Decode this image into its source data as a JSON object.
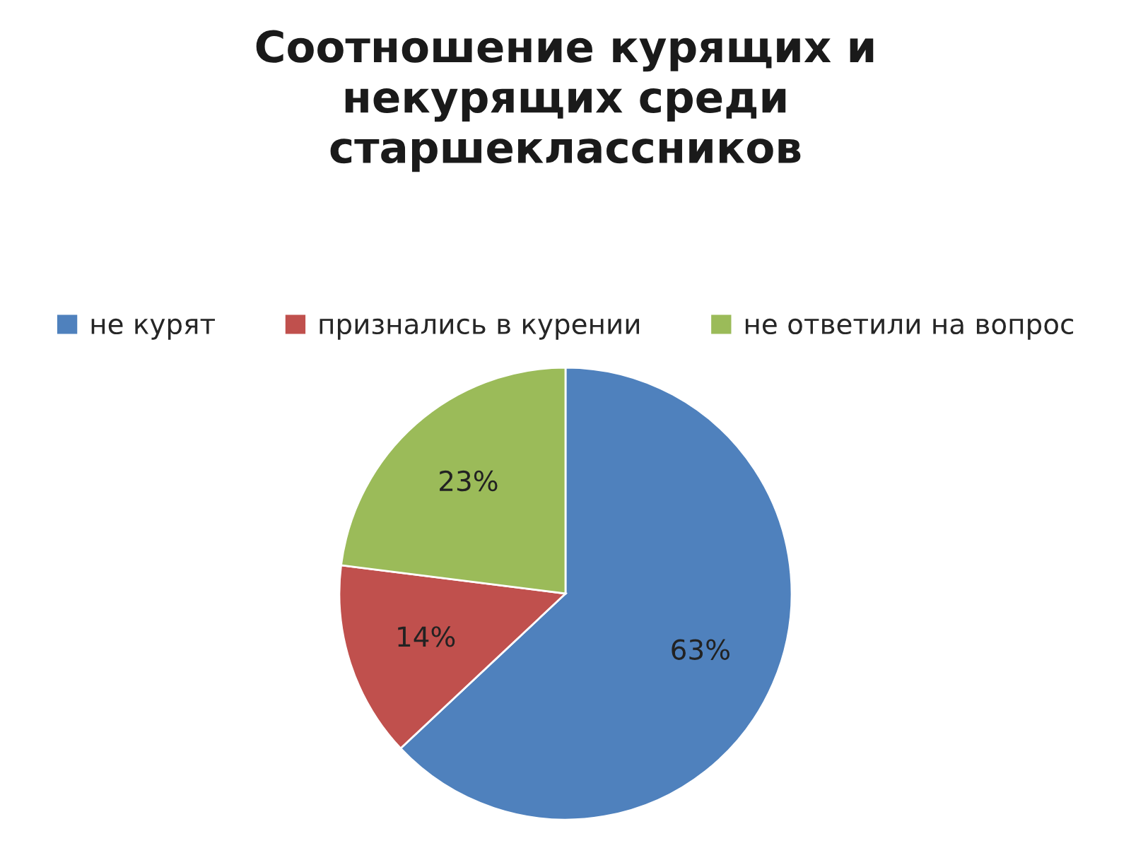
{
  "chart_data": {
    "type": "pie",
    "title": "Соотношение курящих и\nнекурящих среди\nстаршеклассников",
    "categories": [
      "не курят",
      "признались в курении",
      "не ответили на вопрос"
    ],
    "values": [
      63,
      14,
      23
    ],
    "colors": [
      "#4f81bd",
      "#c0504d",
      "#9bbb59"
    ],
    "value_labels": [
      "63%",
      "14%",
      "23%"
    ],
    "legend": "top"
  }
}
